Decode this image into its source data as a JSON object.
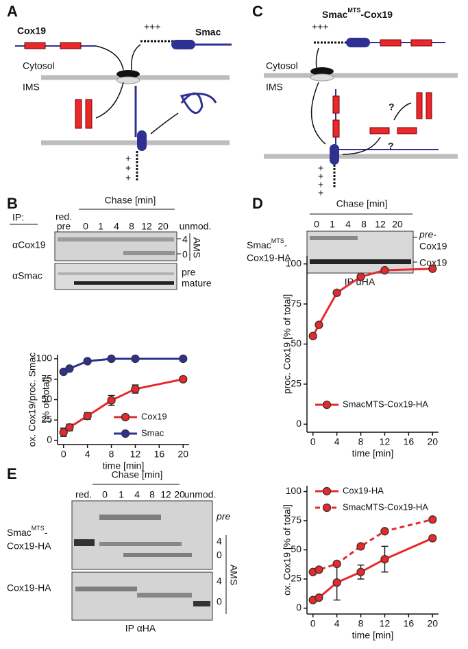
{
  "panels": {
    "a": "A",
    "b": "B",
    "c": "C",
    "d": "D",
    "e": "E"
  },
  "diagram_a": {
    "cox19": "Cox19",
    "smac": "Smac",
    "charges": "+++",
    "cytosol": "Cytosol",
    "ims": "IMS",
    "lower_charges": [
      "+",
      "+",
      "+"
    ]
  },
  "diagram_c": {
    "title": [
      "Smac",
      "MTS",
      "-Cox19"
    ],
    "charges": "+++",
    "cytosol": "Cytosol",
    "ims": "IMS",
    "questions": [
      "?",
      "?"
    ],
    "lower_charges": [
      "+",
      "+",
      "+",
      "+"
    ]
  },
  "gel_b": {
    "header": "Chase [min]",
    "ip": "IP:",
    "first_lane": [
      "red.",
      "pre"
    ],
    "lanes": [
      "0",
      "1",
      "4",
      "8",
      "12",
      "20"
    ],
    "last_lane": "unmod.",
    "rows": [
      "αCox19",
      "αSmac"
    ],
    "ams_marks": [
      "4",
      "0"
    ],
    "ams": "AMS",
    "smac_marks": [
      "pre",
      "mature"
    ]
  },
  "gel_d": {
    "header": "Chase [min]",
    "lanes": [
      "0",
      "1",
      "4",
      "8",
      "12",
      "20"
    ],
    "row_label": [
      "Smac",
      "MTS",
      "-"
    ],
    "row_label_2": "Cox19-HA",
    "marks": [
      "pre-",
      "Cox19",
      "Cox19"
    ],
    "footer": "IP αHA"
  },
  "gel_e": {
    "header": "Chase [min]",
    "first_lane": "red.",
    "lanes": [
      "0",
      "1",
      "4",
      "8",
      "12",
      "20"
    ],
    "last_lane": "unmod.",
    "row_label": [
      "Smac",
      "MTS",
      "-"
    ],
    "row_label_2": "Cox19-HA",
    "row_label_3": "Cox19-HA",
    "pre": "pre",
    "ams_marks_top": [
      "4",
      "0"
    ],
    "ams_marks_bottom": [
      "4",
      "0"
    ],
    "ams": "AMS",
    "footer": "IP αHA"
  },
  "chart_data": [
    {
      "type": "line",
      "ylabel": [
        "ox. Cox19/proc. Smac",
        "[% of total]"
      ],
      "xlabel": "time [min]",
      "xlim": [
        -1,
        21
      ],
      "ylim": [
        -5,
        105
      ],
      "xticks": [
        0,
        4,
        8,
        12,
        16,
        20
      ],
      "yticks": [
        0,
        25,
        50,
        75,
        100
      ],
      "legend": "lower right",
      "series": [
        {
          "name": "Cox19",
          "color": "#e8282b",
          "x": [
            0,
            1,
            4,
            8,
            12,
            20
          ],
          "values": [
            10,
            16,
            30,
            49,
            63,
            75
          ],
          "errors": [
            5,
            4,
            4,
            6,
            5,
            3
          ]
        },
        {
          "name": "Smac",
          "color": "#2e3192",
          "x": [
            0,
            1,
            4,
            8,
            12,
            20
          ],
          "values": [
            84,
            88,
            97,
            100,
            100,
            100
          ]
        }
      ]
    },
    {
      "type": "line",
      "ylabel": [
        "proc. Cox19 [% of total]"
      ],
      "xlabel": "time [min]",
      "xlim": [
        -1,
        21
      ],
      "ylim": [
        -5,
        105
      ],
      "xticks": [
        0,
        4,
        8,
        12,
        16,
        20
      ],
      "yticks": [
        0,
        25,
        50,
        75,
        100
      ],
      "legend": "lower left",
      "series": [
        {
          "name": "SmacMTS-Cox19-HA",
          "color": "#e8282b",
          "x": [
            0,
            1,
            4,
            8,
            12,
            20
          ],
          "values": [
            55,
            62,
            82,
            92,
            96,
            97
          ]
        }
      ]
    },
    {
      "type": "line",
      "ylabel": [
        "ox. Cox19 [% of total]"
      ],
      "xlabel": "time [min]",
      "xlim": [
        -1,
        21
      ],
      "ylim": [
        -5,
        105
      ],
      "xticks": [
        0,
        4,
        8,
        12,
        16,
        20
      ],
      "yticks": [
        0,
        25,
        50,
        75,
        100
      ],
      "legend": "upper left",
      "series": [
        {
          "name": "Cox19-HA",
          "color": "#e8282b",
          "x": [
            0,
            1,
            4,
            8,
            12,
            20
          ],
          "values": [
            7,
            9,
            22,
            31,
            42,
            60
          ],
          "errors": [
            null,
            null,
            15,
            6,
            11,
            null
          ]
        },
        {
          "name": "SmacMTS-Cox19-HA",
          "color": "#e8282b",
          "dash": true,
          "x": [
            0,
            1,
            4,
            8,
            12,
            20
          ],
          "values": [
            31,
            33,
            38,
            53,
            66,
            76
          ]
        }
      ]
    }
  ]
}
